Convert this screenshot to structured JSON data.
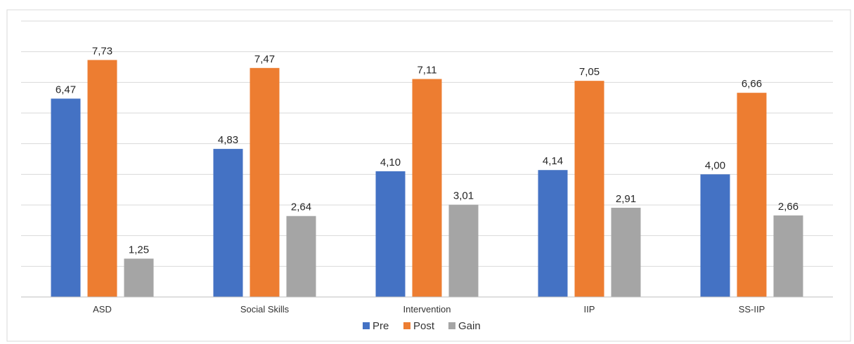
{
  "chart_data": {
    "type": "bar",
    "categories": [
      "ASD",
      "Social Skills",
      "Intervention",
      "IIP",
      "SS-IIP"
    ],
    "series": [
      {
        "name": "Pre",
        "values": [
          6.47,
          4.83,
          4.1,
          4.14,
          4.0
        ],
        "labels": [
          "6,47",
          "4,83",
          "4,10",
          "4,14",
          "4,00"
        ],
        "color": "#4472C4"
      },
      {
        "name": "Post",
        "values": [
          7.73,
          7.47,
          7.11,
          7.05,
          6.66
        ],
        "labels": [
          "7,73",
          "7,47",
          "7,11",
          "7,05",
          "6,66"
        ],
        "color": "#ED7D31"
      },
      {
        "name": "Gain",
        "values": [
          1.25,
          2.64,
          3.01,
          2.91,
          2.66
        ],
        "labels": [
          "1,25",
          "2,64",
          "3,01",
          "2,91",
          "2,66"
        ],
        "color": "#A5A5A5"
      }
    ],
    "ylim": [
      0,
      9
    ],
    "grid": true,
    "legend_position": "bottom"
  }
}
